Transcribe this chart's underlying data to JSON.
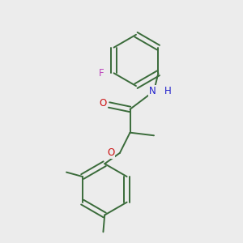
{
  "bg": "#ececec",
  "bond_color": "#3a6b3a",
  "bond_width": 1.4,
  "atom_colors": {
    "C": "#3a6b3a",
    "N": "#2020cc",
    "O": "#cc1111",
    "F": "#bb44bb",
    "H": "#2020cc"
  },
  "font_size": 8.5,
  "ring_r": 0.88
}
